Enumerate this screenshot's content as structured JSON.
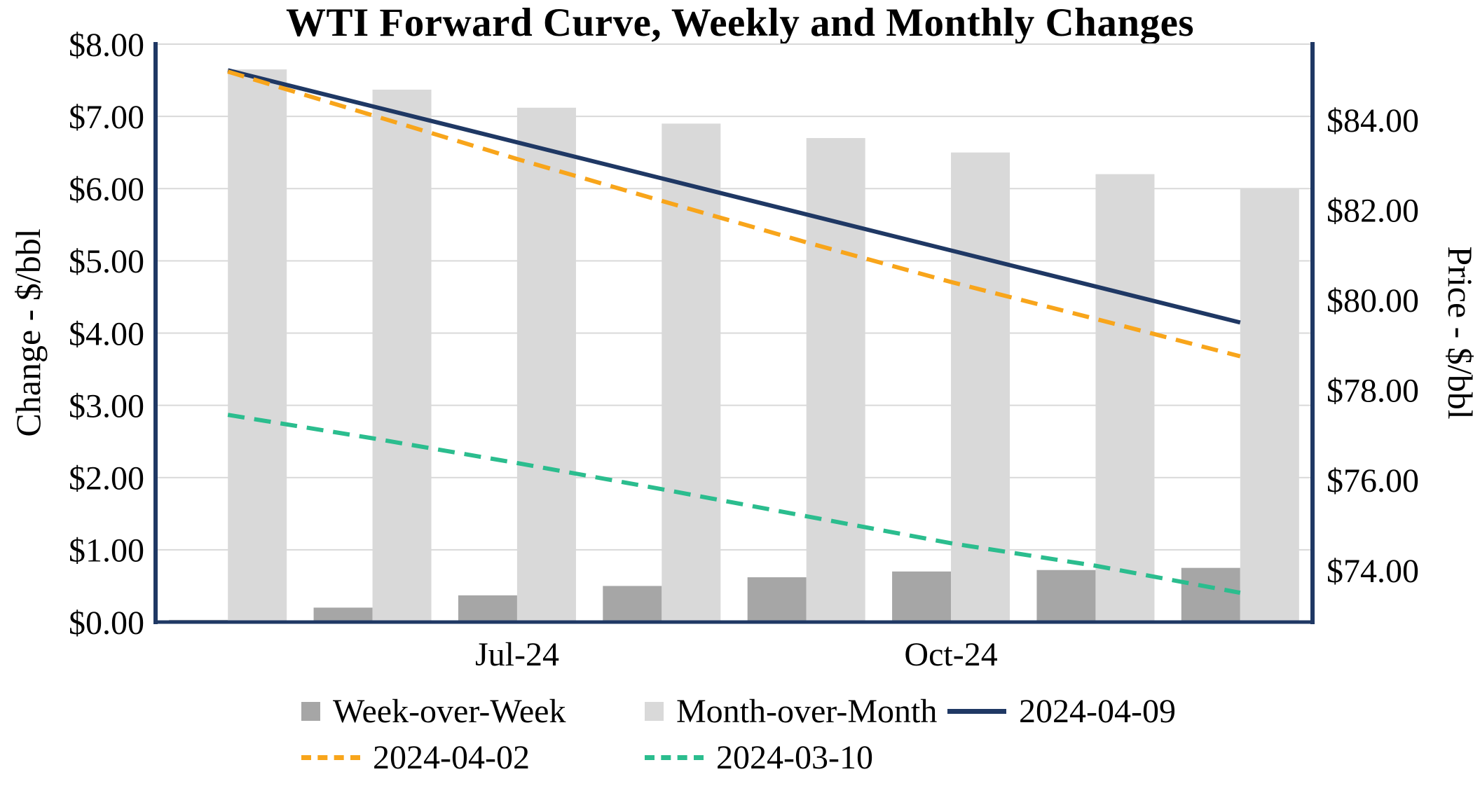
{
  "chart_data": {
    "type": "combo",
    "title": "WTI Forward Curve, Weekly and Monthly Changes",
    "x_labels": [
      "",
      "",
      "Jul-24",
      "",
      "",
      "Oct-24",
      "",
      ""
    ],
    "left_axis": {
      "title": "Change - $/bbl",
      "min": 0,
      "max": 8,
      "ticks": [
        {
          "value": 0,
          "label": "$0.00"
        },
        {
          "value": 1,
          "label": "$1.00"
        },
        {
          "value": 2,
          "label": "$2.00"
        },
        {
          "value": 3,
          "label": "$3.00"
        },
        {
          "value": 4,
          "label": "$4.00"
        },
        {
          "value": 5,
          "label": "$5.00"
        },
        {
          "value": 6,
          "label": "$6.00"
        },
        {
          "value": 7,
          "label": "$7.00"
        },
        {
          "value": 8,
          "label": "$8.00"
        }
      ]
    },
    "right_axis": {
      "title": "Price - $/bbl",
      "min": 72.85,
      "max": 85.68,
      "ticks": [
        {
          "value": 74,
          "label": "$74.00"
        },
        {
          "value": 76,
          "label": "$76.00"
        },
        {
          "value": 78,
          "label": "$78.00"
        },
        {
          "value": 80,
          "label": "$80.00"
        },
        {
          "value": 82,
          "label": "$82.00"
        },
        {
          "value": 84,
          "label": "$84.00"
        }
      ]
    },
    "series": [
      {
        "name": "Week-over-Week",
        "type": "bar",
        "axis": "left",
        "color": "#A6A6A6",
        "values": [
          0.03,
          0.2,
          0.37,
          0.5,
          0.62,
          0.7,
          0.72,
          0.75
        ]
      },
      {
        "name": "Month-over-Month",
        "type": "bar",
        "axis": "left",
        "color": "#D9D9D9",
        "values": [
          7.65,
          7.37,
          7.12,
          6.9,
          6.7,
          6.5,
          6.2,
          6.0
        ]
      },
      {
        "name": "2024-04-09",
        "type": "line",
        "axis": "right",
        "color": "#1F3864",
        "dash": "solid",
        "values": [
          85.1,
          84.3,
          83.5,
          82.7,
          81.9,
          81.1,
          80.3,
          79.5
        ]
      },
      {
        "name": "2024-04-02",
        "type": "line",
        "axis": "right",
        "color": "#F8A51B",
        "dash": "dashed",
        "values": [
          85.07,
          84.1,
          83.13,
          82.2,
          81.28,
          80.4,
          79.58,
          78.75
        ]
      },
      {
        "name": "2024-03-10",
        "type": "line",
        "axis": "right",
        "color": "#2BBD8E",
        "dash": "dashed",
        "values": [
          77.45,
          76.93,
          76.38,
          75.8,
          75.2,
          74.6,
          74.1,
          73.5
        ]
      }
    ],
    "legend_rows": [
      [
        "Week-over-Week",
        "Month-over-Month",
        "2024-04-09"
      ],
      [
        "2024-04-02",
        "2024-03-10"
      ]
    ],
    "colors": {
      "grid": "#D9D9D9",
      "frame": "#1F3864",
      "background": "#FFFFFF",
      "text": "#000000"
    }
  }
}
